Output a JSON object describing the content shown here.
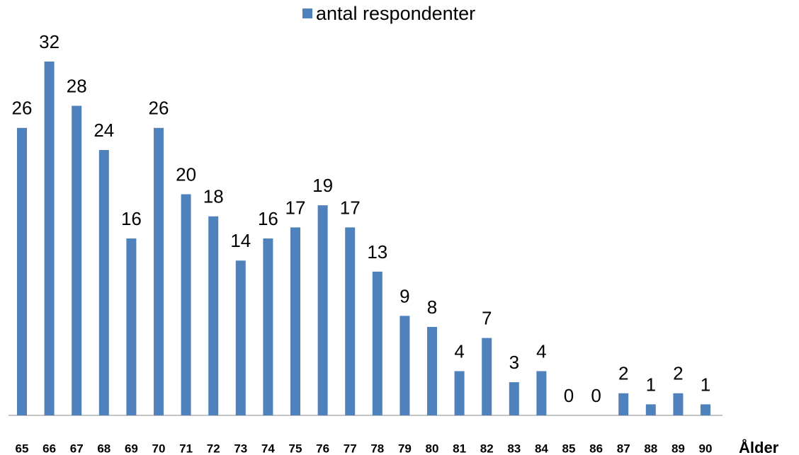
{
  "chart_data": {
    "type": "bar",
    "legend": "antal respondenter",
    "x_label": "Ålder",
    "categories": [
      "65",
      "66",
      "67",
      "68",
      "69",
      "70",
      "71",
      "72",
      "73",
      "74",
      "75",
      "76",
      "77",
      "78",
      "79",
      "80",
      "81",
      "82",
      "83",
      "84",
      "85",
      "86",
      "87",
      "88",
      "89",
      "90"
    ],
    "series": [
      {
        "name": "antal respondenter",
        "color": "#4f81bd",
        "values": [
          26,
          32,
          28,
          24,
          16,
          26,
          20,
          18,
          14,
          16,
          17,
          19,
          17,
          13,
          9,
          8,
          4,
          7,
          3,
          4,
          0,
          0,
          2,
          1,
          2,
          1
        ]
      }
    ],
    "ylim": [
      0,
      32
    ]
  }
}
